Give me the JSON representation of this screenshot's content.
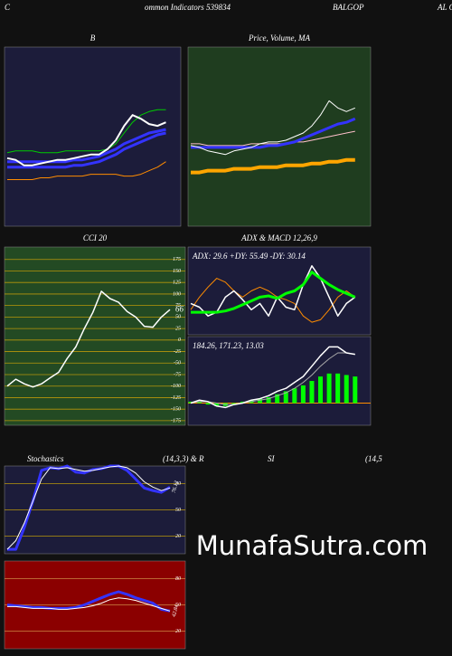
{
  "header": [
    "C",
    "ommon Indicators 539834",
    "BALGOP",
    "AL C"
  ],
  "header2": [
    "Stochastics",
    "(14,3,3) & R",
    "SI",
    "(14,5"
  ],
  "watermark": "MunafaSutra.com",
  "chart_data": [
    {
      "type": "line",
      "title": "B",
      "background": "#1c1c3a",
      "ylim": [
        0,
        100
      ],
      "series": [
        {
          "color": "#ff8c00",
          "width": 1,
          "values": [
            26,
            26,
            26,
            26,
            27,
            27,
            28,
            28,
            28,
            28,
            29,
            29,
            29,
            29,
            28,
            28,
            29,
            31,
            33,
            36
          ]
        },
        {
          "color": "#00cc00",
          "width": 1,
          "values": [
            41,
            42,
            42,
            42,
            41,
            41,
            41,
            42,
            42,
            42,
            42,
            42,
            43,
            46,
            52,
            58,
            62,
            64,
            65,
            65
          ]
        },
        {
          "color": "#3333ff",
          "width": 3,
          "values": [
            33,
            33,
            33,
            33,
            33,
            33,
            33,
            33,
            34,
            34,
            35,
            36,
            38,
            40,
            43,
            45,
            47,
            49,
            51,
            52
          ]
        },
        {
          "color": "#3333ff",
          "width": 3,
          "values": [
            36,
            36,
            36,
            36,
            36,
            36,
            36,
            36,
            37,
            37,
            38,
            39,
            41,
            43,
            46,
            48,
            50,
            52,
            53,
            54
          ]
        },
        {
          "color": "#ffffff",
          "width": 2,
          "values": [
            38,
            37,
            34,
            34,
            35,
            36,
            37,
            37,
            38,
            39,
            40,
            40,
            43,
            48,
            56,
            62,
            60,
            57,
            56,
            58
          ]
        }
      ]
    },
    {
      "type": "line",
      "title": "Price, Volume, MA",
      "background": "#1f3d1f",
      "ylim": [
        0,
        100
      ],
      "series": [
        {
          "color": "#ffa500",
          "width": 4,
          "values": [
            30,
            30,
            31,
            31,
            31,
            32,
            32,
            32,
            33,
            33,
            33,
            34,
            34,
            34,
            35,
            35,
            36,
            36,
            37,
            37
          ]
        },
        {
          "color": "#ffc0cb",
          "width": 1,
          "values": [
            46,
            46,
            45,
            45,
            45,
            45,
            45,
            46,
            46,
            46,
            46,
            46,
            47,
            47,
            48,
            49,
            50,
            51,
            52,
            53
          ]
        },
        {
          "color": "#3333ff",
          "width": 3,
          "values": [
            44,
            44,
            44,
            44,
            44,
            44,
            44,
            44,
            44,
            45,
            45,
            46,
            47,
            49,
            51,
            53,
            55,
            57,
            58,
            60
          ]
        },
        {
          "color": "#ffffff",
          "width": 1,
          "values": [
            45,
            44,
            42,
            41,
            40,
            42,
            43,
            44,
            46,
            47,
            47,
            48,
            50,
            52,
            56,
            62,
            70,
            66,
            64,
            66
          ]
        }
      ]
    },
    {
      "type": "line",
      "title": "CCI 20",
      "background": "#234a23",
      "grid_color": "#b8960b",
      "ylim": [
        -185,
        202
      ],
      "yticks": [
        175,
        150,
        125,
        100,
        75,
        50,
        25,
        0,
        -25,
        -50,
        -75,
        -100,
        -125,
        -150,
        -175
      ],
      "annotation": "66",
      "series": [
        {
          "color": "#ffffff",
          "width": 1.5,
          "values": [
            -100,
            -85,
            -95,
            -102,
            -95,
            -82,
            -70,
            -40,
            -15,
            25,
            60,
            106,
            90,
            82,
            62,
            50,
            30,
            28,
            50,
            66
          ]
        }
      ]
    },
    {
      "type": "line",
      "title": "ADX  & MACD 12,26,9",
      "subtitle": "ADX: 29.6  +DY: 55.49 -DY: 30.14",
      "background": "#1c1c3a",
      "ylim": [
        0,
        70
      ],
      "series": [
        {
          "color": "#ff8c00",
          "width": 1,
          "values": [
            20,
            30,
            38,
            45,
            42,
            35,
            30,
            35,
            38,
            35,
            30,
            28,
            25,
            15,
            10,
            12,
            20,
            30,
            35,
            30
          ]
        },
        {
          "color": "#ffffff",
          "width": 1.5,
          "values": [
            25,
            22,
            15,
            18,
            30,
            35,
            28,
            20,
            25,
            15,
            30,
            22,
            20,
            40,
            55,
            45,
            30,
            15,
            25,
            30
          ]
        },
        {
          "color": "#00ff00",
          "width": 3,
          "values": [
            18,
            18,
            18,
            18,
            19,
            21,
            24,
            27,
            30,
            31,
            29,
            33,
            35,
            40,
            50,
            45,
            40,
            36,
            33,
            30
          ]
        }
      ]
    },
    {
      "type": "line",
      "subtitle": "184.26, 171.23, 13.03",
      "background": "#1c1c3a",
      "zero_color": "#ff8c00",
      "ylim": [
        -15,
        45
      ],
      "series": [
        {
          "style": "bar",
          "color": "#00ff00",
          "values": [
            1,
            1,
            -1,
            -2,
            -2,
            -1,
            1,
            2,
            3,
            4,
            6,
            8,
            10,
            12,
            15,
            18,
            20,
            20,
            19,
            18
          ]
        },
        {
          "color": "#aaaaaa",
          "width": 1,
          "values": [
            0,
            1,
            1,
            0,
            -1,
            -1,
            0,
            1,
            2,
            3,
            5,
            7,
            10,
            14,
            19,
            25,
            30,
            34,
            34,
            33
          ]
        },
        {
          "color": "#ffffff",
          "width": 1.5,
          "values": [
            0,
            2,
            1,
            -2,
            -3,
            -1,
            0,
            2,
            3,
            5,
            8,
            10,
            14,
            18,
            25,
            32,
            38,
            38,
            34,
            33
          ]
        }
      ]
    },
    {
      "type": "line",
      "background": "#1c1c3a",
      "grid_color": "#b8960b",
      "ylim": [
        0,
        100
      ],
      "yticks": [
        80,
        50,
        20
      ],
      "annotation": "76.12",
      "series": [
        {
          "color": "#3333ff",
          "width": 3,
          "values": [
            5,
            5,
            30,
            60,
            95,
            98,
            97,
            100,
            93,
            92,
            96,
            97,
            100,
            100,
            95,
            85,
            75,
            72,
            70,
            76
          ]
        },
        {
          "color": "#ffffff",
          "width": 1,
          "values": [
            5,
            15,
            35,
            60,
            85,
            98,
            97,
            98,
            96,
            94,
            95,
            97,
            99,
            100,
            98,
            92,
            82,
            76,
            72,
            75
          ]
        }
      ]
    },
    {
      "type": "line",
      "background": "#8b0000",
      "grid_color": "#cc8844",
      "ylim": [
        0,
        100
      ],
      "yticks": [
        80,
        50,
        20
      ],
      "annotation": "42.84",
      "series": [
        {
          "color": "#3333ff",
          "width": 3,
          "values": [
            50,
            49,
            48,
            47,
            47,
            46,
            46,
            46,
            47,
            50,
            54,
            58,
            62,
            65,
            62,
            58,
            55,
            52,
            45,
            43
          ]
        },
        {
          "color": "#ffffff",
          "width": 1,
          "values": [
            48,
            48,
            47,
            46,
            46,
            46,
            45,
            45,
            46,
            47,
            49,
            52,
            56,
            58,
            57,
            55,
            52,
            49,
            46,
            43
          ]
        }
      ]
    }
  ]
}
